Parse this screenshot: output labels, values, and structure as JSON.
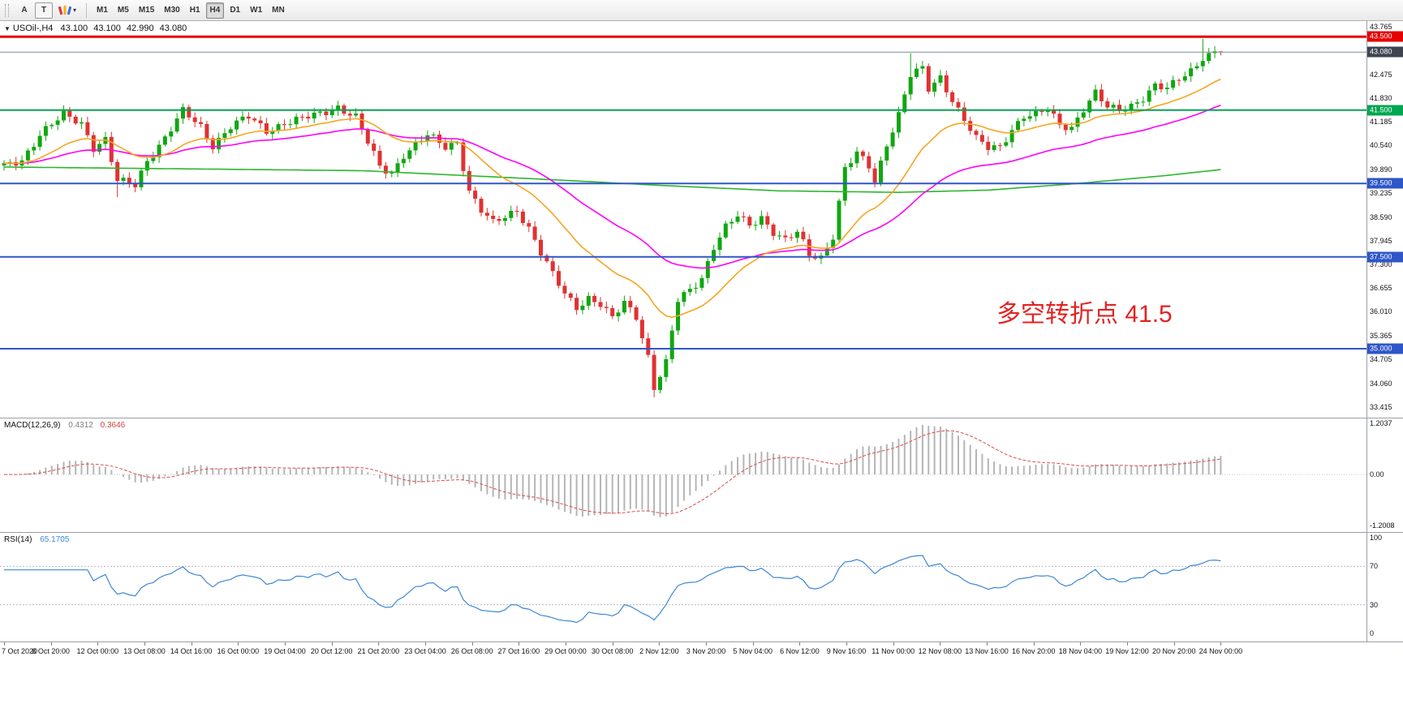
{
  "toolbar": {
    "tools": [
      {
        "label": "A"
      },
      {
        "label": "T"
      }
    ],
    "timeframes": [
      "M1",
      "M5",
      "M15",
      "M30",
      "H1",
      "H4",
      "D1",
      "W1",
      "MN"
    ],
    "active_timeframe": "H4"
  },
  "chart_data": {
    "type": "candlestick",
    "symbol": "USOil-",
    "timeframe": "H4",
    "title_symbol_tf": "USOil-,H4",
    "title_ohlc": {
      "open": "43.100",
      "high": "43.100",
      "low": "42.990",
      "close": "43.080"
    },
    "annotation": {
      "text": "多空转折点 41.5",
      "color": "#e32222"
    },
    "num_candles": 205,
    "candle_colors": {
      "up": "#10a710",
      "down": "#e03232"
    },
    "price_axis": {
      "min": 33.3,
      "max": 43.88,
      "ticks": [
        "43.765",
        "42.475",
        "41.830",
        "41.185",
        "40.540",
        "39.890",
        "39.235",
        "38.590",
        "37.945",
        "37.300",
        "36.655",
        "36.010",
        "35.365",
        "34.705",
        "34.060",
        "33.415"
      ]
    },
    "h_lines": [
      {
        "value": 43.5,
        "label": "43.500",
        "color": "#e60000",
        "width": 3
      },
      {
        "value": 41.5,
        "label": "41.500",
        "color": "#00a651",
        "width": 2
      },
      {
        "value": 39.5,
        "label": "39.500",
        "color": "#2e56c8",
        "width": 2
      },
      {
        "value": 37.5,
        "label": "37.500",
        "color": "#2e56c8",
        "width": 2
      },
      {
        "value": 35.0,
        "label": "35.000",
        "color": "#2e56c8",
        "width": 2
      }
    ],
    "current_price": {
      "value": 43.08,
      "label": "43.080",
      "line_color": "#7c8ca0",
      "tag_color": "#3d4450"
    },
    "price_path_anchors": [
      [
        0,
        39.95
      ],
      [
        3,
        40.15
      ],
      [
        6,
        40.85
      ],
      [
        10,
        41.35
      ],
      [
        13,
        41.15
      ],
      [
        15,
        40.5
      ],
      [
        17,
        40.7
      ],
      [
        19,
        39.55
      ],
      [
        22,
        39.45
      ],
      [
        24,
        40.15
      ],
      [
        27,
        40.75
      ],
      [
        30,
        41.45
      ],
      [
        33,
        41.05
      ],
      [
        35,
        40.55
      ],
      [
        38,
        41.05
      ],
      [
        41,
        41.3
      ],
      [
        44,
        40.95
      ],
      [
        47,
        41.15
      ],
      [
        50,
        41.25
      ],
      [
        53,
        41.4
      ],
      [
        56,
        41.6
      ],
      [
        59,
        41.3
      ],
      [
        61,
        40.6
      ],
      [
        63,
        39.95
      ],
      [
        65,
        39.8
      ],
      [
        67,
        40.3
      ],
      [
        69,
        40.55
      ],
      [
        71,
        40.8
      ],
      [
        74,
        40.5
      ],
      [
        76,
        40.65
      ],
      [
        78,
        39.3
      ],
      [
        80,
        38.75
      ],
      [
        82,
        38.4
      ],
      [
        84,
        38.6
      ],
      [
        86,
        38.8
      ],
      [
        88,
        38.3
      ],
      [
        90,
        37.6
      ],
      [
        92,
        37.0
      ],
      [
        94,
        36.5
      ],
      [
        96,
        36.15
      ],
      [
        98,
        36.4
      ],
      [
        100,
        36.2
      ],
      [
        102,
        35.8
      ],
      [
        104,
        36.25
      ],
      [
        106,
        35.9
      ],
      [
        108,
        34.8
      ],
      [
        109,
        33.95
      ],
      [
        111,
        34.6
      ],
      [
        113,
        36.3
      ],
      [
        115,
        36.6
      ],
      [
        117,
        36.95
      ],
      [
        119,
        37.8
      ],
      [
        121,
        38.3
      ],
      [
        123,
        38.6
      ],
      [
        125,
        38.35
      ],
      [
        127,
        38.6
      ],
      [
        129,
        38.2
      ],
      [
        131,
        37.95
      ],
      [
        133,
        38.15
      ],
      [
        135,
        37.55
      ],
      [
        137,
        37.5
      ],
      [
        139,
        38.1
      ],
      [
        141,
        39.9
      ],
      [
        143,
        40.3
      ],
      [
        145,
        39.95
      ],
      [
        146,
        39.55
      ],
      [
        148,
        40.6
      ],
      [
        150,
        41.4
      ],
      [
        152,
        42.45
      ],
      [
        154,
        42.6
      ],
      [
        155,
        42.05
      ],
      [
        157,
        42.4
      ],
      [
        159,
        41.8
      ],
      [
        161,
        41.25
      ],
      [
        163,
        40.7
      ],
      [
        165,
        40.45
      ],
      [
        167,
        40.5
      ],
      [
        169,
        41.0
      ],
      [
        171,
        41.35
      ],
      [
        173,
        41.35
      ],
      [
        175,
        41.5
      ],
      [
        177,
        41.1
      ],
      [
        179,
        41.05
      ],
      [
        181,
        41.55
      ],
      [
        183,
        41.95
      ],
      [
        185,
        41.55
      ],
      [
        187,
        41.5
      ],
      [
        189,
        41.65
      ],
      [
        191,
        41.85
      ],
      [
        193,
        42.15
      ],
      [
        195,
        42.05
      ],
      [
        197,
        42.35
      ],
      [
        199,
        42.6
      ],
      [
        201,
        42.95
      ],
      [
        203,
        43.05
      ],
      [
        204,
        43.08
      ]
    ],
    "wick_overrides": {
      "highs": {
        "152": 43.05,
        "201": 43.44
      },
      "lows": {
        "19": 39.13,
        "109": 33.68
      }
    },
    "moving_averages": {
      "fast": {
        "period": 20,
        "color": "#f5a623"
      },
      "medium": {
        "period": 48,
        "color": "#ff00ff"
      },
      "slow": {
        "color": "#2db52d",
        "anchors": [
          [
            0,
            39.95
          ],
          [
            30,
            39.9
          ],
          [
            60,
            39.85
          ],
          [
            90,
            39.62
          ],
          [
            110,
            39.45
          ],
          [
            130,
            39.3
          ],
          [
            150,
            39.26
          ],
          [
            165,
            39.32
          ],
          [
            180,
            39.5
          ],
          [
            195,
            39.72
          ],
          [
            204,
            39.88
          ]
        ]
      }
    },
    "x_axis_labels": [
      "7 Oct 2020",
      "8 Oct 20:00",
      "12 Oct 00:00",
      "13 Oct 08:00",
      "14 Oct 16:00",
      "16 Oct 00:00",
      "19 Oct 04:00",
      "20 Oct 12:00",
      "21 Oct 20:00",
      "23 Oct 04:00",
      "26 Oct 08:00",
      "27 Oct 16:00",
      "29 Oct 00:00",
      "30 Oct 08:00",
      "2 Nov 12:00",
      "3 Nov 20:00",
      "5 Nov 04:00",
      "6 Nov 12:00",
      "9 Nov 16:00",
      "11 Nov 00:00",
      "12 Nov 08:00",
      "13 Nov 16:00",
      "16 Nov 20:00",
      "18 Nov 04:00",
      "19 Nov 12:00",
      "20 Nov 20:00",
      "24 Nov 00:00"
    ],
    "macd": {
      "label": "MACD(12,26,9)",
      "main_value": "0.4312",
      "signal_value": "0.3646",
      "params": [
        12,
        26,
        9
      ],
      "histogram_color": "#b5b5b5",
      "signal_color": "#d94f4f",
      "scale": {
        "max": 1.2037,
        "min": -1.2008,
        "ticks": [
          {
            "value": 1.2037,
            "label": "1.2037"
          },
          {
            "value": 0,
            "label": "0.00"
          },
          {
            "value": -1.2008,
            "label": "-1.2008"
          }
        ]
      }
    },
    "rsi": {
      "label": "RSI(14)",
      "value": "65.1705",
      "period": 14,
      "line_color": "#3d87d6",
      "levels": [
        70,
        30
      ],
      "scale_ticks": [
        {
          "value": 100,
          "label": "100"
        },
        {
          "value": 70,
          "label": "70"
        },
        {
          "value": 30,
          "label": "30"
        },
        {
          "value": 0,
          "label": "0"
        }
      ]
    }
  }
}
